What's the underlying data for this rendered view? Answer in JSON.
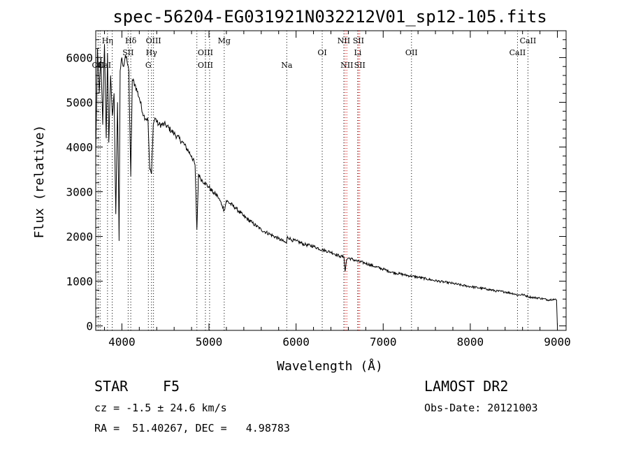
{
  "chart_data": {
    "type": "line",
    "title": "spec-56204-EG031921N032212V01_sp12-105.fits",
    "xlabel": "Wavelength (Å)",
    "ylabel": "Flux (relative)",
    "xlim": [
      3700,
      9100
    ],
    "ylim": [
      -100,
      6600
    ],
    "xticks": [
      4000,
      5000,
      6000,
      7000,
      8000,
      9000
    ],
    "yticks": [
      0,
      1000,
      2000,
      3000,
      4000,
      5000,
      6000
    ],
    "grid": false,
    "series": [
      {
        "values_x": [
          3700,
          3720,
          3740,
          3760,
          3780,
          3800,
          3820,
          3835,
          3850,
          3870,
          3890,
          3910,
          3930,
          3950,
          3968,
          3980,
          4000,
          4020,
          4040,
          4060,
          4080,
          4102,
          4120,
          4150,
          4200,
          4250,
          4300,
          4320,
          4340,
          4360,
          4380,
          4420,
          4500,
          4600,
          4700,
          4800,
          4840,
          4861,
          4880,
          4900,
          4950,
          5000,
          5050,
          5100,
          5150,
          5175,
          5200,
          5300,
          5400,
          5500,
          5600,
          5700,
          5800,
          5890,
          5900,
          5950,
          6000,
          6100,
          6200,
          6300,
          6400,
          6500,
          6550,
          6563,
          6580,
          6600,
          6700,
          6800,
          6900,
          7000,
          7100,
          7200,
          7300,
          7400,
          7500,
          7600,
          7700,
          7800,
          7900,
          8000,
          8100,
          8200,
          8300,
          8400,
          8500,
          8542,
          8600,
          8662,
          8700,
          8800,
          8900,
          8950,
          8990,
          9000
        ],
        "values_y": [
          3800,
          6200,
          5200,
          6000,
          4500,
          6300,
          4200,
          6100,
          4100,
          5600,
          4700,
          5200,
          2500,
          5000,
          1900,
          5700,
          6000,
          5800,
          6050,
          5900,
          5700,
          3350,
          5500,
          5400,
          5100,
          4700,
          4600,
          3500,
          3400,
          4500,
          4650,
          4500,
          4500,
          4300,
          4100,
          3800,
          3600,
          2150,
          3400,
          3300,
          3200,
          3100,
          2980,
          2900,
          2700,
          2580,
          2800,
          2650,
          2450,
          2300,
          2150,
          2050,
          1950,
          1850,
          2000,
          1920,
          1900,
          1820,
          1780,
          1700,
          1650,
          1560,
          1540,
          1220,
          1480,
          1520,
          1450,
          1400,
          1330,
          1270,
          1200,
          1160,
          1120,
          1090,
          1050,
          1010,
          980,
          950,
          910,
          880,
          850,
          820,
          780,
          760,
          720,
          690,
          700,
          660,
          640,
          620,
          580,
          600,
          580,
          0
        ]
      }
    ],
    "annotations": [
      {
        "label": "Hη",
        "x": 3835,
        "row": 0
      },
      {
        "label": "Hδ",
        "x": 4102,
        "row": 0
      },
      {
        "label": "OIII",
        "x": 4363,
        "row": 0
      },
      {
        "label": "Mg",
        "x": 5175,
        "row": 0
      },
      {
        "label": "NII",
        "x": 6548,
        "row": 0
      },
      {
        "label": "SII",
        "x": 6716,
        "row": 0
      },
      {
        "label": "CaII",
        "x": 8662,
        "row": 0
      },
      {
        "label": "SII",
        "x": 4072,
        "row": 1
      },
      {
        "label": "Hγ",
        "x": 4340,
        "row": 1
      },
      {
        "label": "OIII",
        "x": 4959,
        "row": 1
      },
      {
        "label": "OI",
        "x": 6300,
        "row": 1
      },
      {
        "label": "Li",
        "x": 6708,
        "row": 1
      },
      {
        "label": "OII",
        "x": 7325,
        "row": 1
      },
      {
        "label": "CaII",
        "x": 8542,
        "row": 1
      },
      {
        "label": "OII",
        "x": 3727,
        "row": 2
      },
      {
        "label": "CaI",
        "x": 3800,
        "row": 2
      },
      {
        "label": "G",
        "x": 4304,
        "row": 2
      },
      {
        "label": "OIII",
        "x": 4959,
        "row": 2
      },
      {
        "label": "Na",
        "x": 5893,
        "row": 2
      },
      {
        "label": "NII",
        "x": 6583,
        "row": 2
      },
      {
        "label": "SII",
        "x": 6731,
        "row": 2
      }
    ],
    "black_lines": [
      3727,
      3750,
      3835,
      3889,
      4072,
      4102,
      4304,
      4340,
      4363,
      4861,
      4959,
      5007,
      5175,
      5893,
      6300,
      6548,
      6708,
      7325,
      8542,
      8662
    ],
    "red_lines": [
      6563,
      6583,
      6716,
      6731
    ]
  },
  "info": {
    "object_class": "STAR",
    "subclass": "F5",
    "survey": "LAMOST DR2",
    "cz": "cz = -1.5 ± 24.6 km/s",
    "obs_date": "Obs-Date: 20121003",
    "coords": "RA =  51.40267, DEC =   4.98783"
  }
}
